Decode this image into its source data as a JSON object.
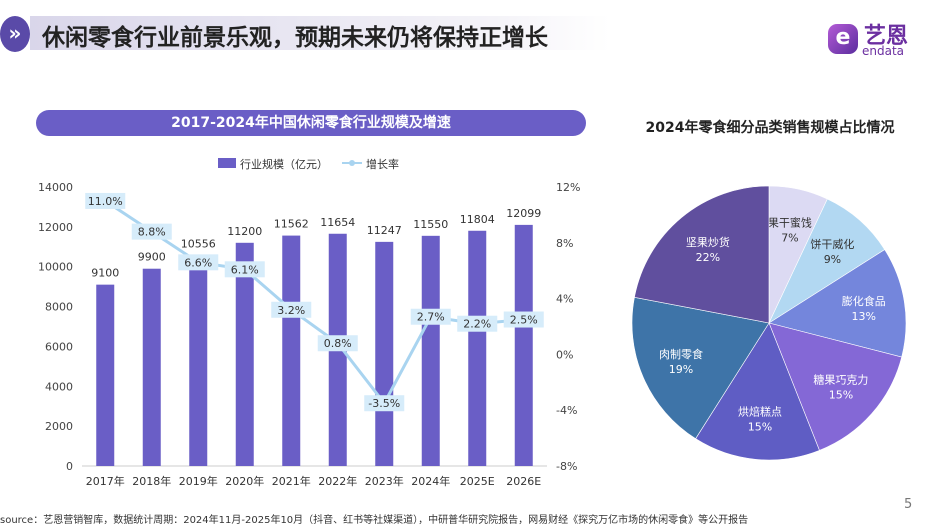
{
  "header": {
    "title": "休闲零食行业前景乐观，预期未来仍将保持正增长",
    "icon": "double-chevron-right-icon"
  },
  "logo": {
    "cn": "艺恩",
    "en": "endata"
  },
  "footer": {
    "source": "source：艺恩营销智库，数据统计周期：2024年11月-2025年10月（抖音、红书等社媒渠道），中研普华研究院报告，网易财经《探究万亿市场的休闲零食》等公开报告",
    "page": "5"
  },
  "chart_data": [
    {
      "type": "bar",
      "title": "2017-2024年中国休闲零食行业规模及增速",
      "categories": [
        "2017年",
        "2018年",
        "2019年",
        "2020年",
        "2021年",
        "2022年",
        "2023年",
        "2024年",
        "2025E",
        "2026E"
      ],
      "series": [
        {
          "name": "行业规模（亿元）",
          "type": "bar",
          "axis": "left",
          "color": "#6a5ec6",
          "values": [
            9100,
            9900,
            10556,
            11200,
            11562,
            11654,
            11247,
            11550,
            11804,
            12099
          ],
          "labels": [
            "9100",
            "9900",
            "10556",
            "11200",
            "11562",
            "11654",
            "11247",
            "11550",
            "11804",
            "12099"
          ]
        },
        {
          "name": "增长率",
          "type": "line",
          "axis": "right",
          "color": "#a9d4f0",
          "values": [
            11.0,
            8.8,
            6.6,
            6.1,
            3.2,
            0.8,
            -3.5,
            2.7,
            2.2,
            2.5
          ],
          "labels": [
            "11.0%",
            "8.8%",
            "6.6%",
            "6.1%",
            "3.2%",
            "0.8%",
            "-3.5%",
            "2.7%",
            "2.2%",
            "2.5%"
          ]
        }
      ],
      "yleft": {
        "ylim": [
          0,
          14000
        ],
        "ticks": [
          "0",
          "2000",
          "4000",
          "6000",
          "8000",
          "10000",
          "12000",
          "14000"
        ]
      },
      "yright": {
        "ylim": [
          -8,
          12
        ],
        "ticks": [
          "-8%",
          "-4%",
          "0%",
          "4%",
          "8%",
          "12%"
        ]
      },
      "legend": "top",
      "grid": false
    },
    {
      "type": "pie",
      "title": "2024年零食细分品类销售规模占比情况",
      "slices": [
        {
          "label": "果干蜜饯",
          "value": 7,
          "text": "7%",
          "color": "#dcdaf3"
        },
        {
          "label": "饼干威化",
          "value": 9,
          "text": "9%",
          "color": "#b2d8f2"
        },
        {
          "label": "膨化食品",
          "value": 13,
          "text": "13%",
          "color": "#7486dc"
        },
        {
          "label": "糖果巧克力",
          "value": 15,
          "text": "15%",
          "color": "#8468d6"
        },
        {
          "label": "烘焙糕点",
          "value": 15,
          "text": "15%",
          "color": "#5f5dc4"
        },
        {
          "label": "肉制零食",
          "value": 19,
          "text": "19%",
          "color": "#3e74a8"
        },
        {
          "label": "坚果炒货",
          "value": 22,
          "text": "22%",
          "color": "#604f9e"
        }
      ]
    }
  ]
}
